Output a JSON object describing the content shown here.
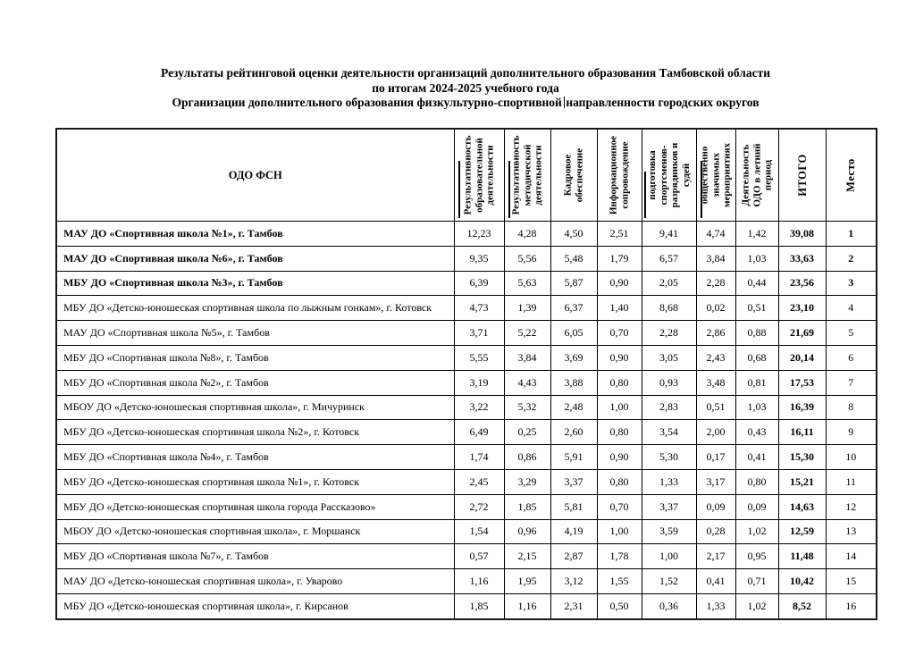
{
  "title": {
    "line1": "Результаты рейтинговой оценки деятельности организаций дополнительного образования Тамбовской области",
    "line2": "по итогам 2024-2025 учебного года",
    "line3_before": "Организации дополнительного образования физкультурно-спортивной",
    "line3_after": "направленности городских округов"
  },
  "table": {
    "first_column_header": "ОДО ФСН",
    "columns": [
      {
        "label": "Результативность образовательной деятельности",
        "artifact": true
      },
      {
        "label": "Результативность методической деятельности",
        "artifact": true
      },
      {
        "label": "Кадровое обеспечение",
        "artifact": false
      },
      {
        "label": "Информационное сопровождение",
        "artifact": false
      },
      {
        "label": "подготовка спортсменов-разрядников и судей",
        "artifact": true,
        "artifact_short": true
      },
      {
        "label": "общественно значимых мероприятиях",
        "artifact": true
      },
      {
        "label": "Деятельность ОДО в летний период",
        "artifact": false
      },
      {
        "label": "ИТОГО",
        "artifact": false,
        "big": true
      },
      {
        "label": "Место",
        "artifact": false,
        "big": true
      }
    ],
    "rows": [
      {
        "name": "МАУ ДО «Спортивная школа №1», г. Тамбов",
        "bold": true,
        "values": [
          "12,23",
          "4,28",
          "4,50",
          "2,51",
          "9,41",
          "4,74",
          "1,42"
        ],
        "total": "39,08",
        "place": "1"
      },
      {
        "name": "МАУ ДО «Спортивная школа №6», г. Тамбов",
        "bold": true,
        "values": [
          "9,35",
          "5,56",
          "5,48",
          "1,79",
          "6,57",
          "3,84",
          "1,03"
        ],
        "total": "33,63",
        "place": "2"
      },
      {
        "name": "МБУ ДО «Спортивная школа №3», г. Тамбов",
        "bold": true,
        "values": [
          "6,39",
          "5,63",
          "5,87",
          "0,90",
          "2,05",
          "2,28",
          "0,44"
        ],
        "total": "23,56",
        "place": "3"
      },
      {
        "name": "МБУ ДО «Детско-юношеская спортивная школа по лыжным гонкам», г. Котовск",
        "bold": false,
        "values": [
          "4,73",
          "1,39",
          "6,37",
          "1,40",
          "8,68",
          "0,02",
          "0,51"
        ],
        "total": "23,10",
        "place": "4"
      },
      {
        "name": "МАУ ДО «Спортивная школа №5», г. Тамбов",
        "bold": false,
        "values": [
          "3,71",
          "5,22",
          "6,05",
          "0,70",
          "2,28",
          "2,86",
          "0,88"
        ],
        "total": "21,69",
        "place": "5"
      },
      {
        "name": "МБУ ДО «Спортивная школа №8», г. Тамбов",
        "bold": false,
        "values": [
          "5,55",
          "3,84",
          "3,69",
          "0,90",
          "3,05",
          "2,43",
          "0,68"
        ],
        "total": "20,14",
        "place": "6"
      },
      {
        "name": "МБУ ДО «Спортивная школа №2», г. Тамбов",
        "bold": false,
        "values": [
          "3,19",
          "4,43",
          "3,88",
          "0,80",
          "0,93",
          "3,48",
          "0,81"
        ],
        "total": "17,53",
        "place": "7"
      },
      {
        "name": "МБОУ ДО «Детско-юношеская спортивная школа», г. Мичуринск",
        "bold": false,
        "values": [
          "3,22",
          "5,32",
          "2,48",
          "1,00",
          "2,83",
          "0,51",
          "1,03"
        ],
        "total": "16,39",
        "place": "8"
      },
      {
        "name": "МБУ ДО «Детско-юношеская спортивная школа №2», г. Котовск",
        "bold": false,
        "values": [
          "6,49",
          "0,25",
          "2,60",
          "0,80",
          "3,54",
          "2,00",
          "0,43"
        ],
        "total": "16,11",
        "place": "9"
      },
      {
        "name": "МБУ ДО «Спортивная школа №4», г. Тамбов",
        "bold": false,
        "values": [
          "1,74",
          "0,86",
          "5,91",
          "0,90",
          "5,30",
          "0,17",
          "0,41"
        ],
        "total": "15,30",
        "place": "10"
      },
      {
        "name": "МБУ ДО «Детско-юношеская спортивная школа №1», г. Котовск",
        "bold": false,
        "values": [
          "2,45",
          "3,29",
          "3,37",
          "0,80",
          "1,33",
          "3,17",
          "0,80"
        ],
        "total": "15,21",
        "place": "11"
      },
      {
        "name": "МБУ ДО «Детско-юношеская спортивная школа города Рассказово»",
        "bold": false,
        "values": [
          "2,72",
          "1,85",
          "5,81",
          "0,70",
          "3,37",
          "0,09",
          "0,09"
        ],
        "total": "14,63",
        "place": "12"
      },
      {
        "name": "МБОУ ДО «Детско-юношеская спортивная школа», г. Моршанск",
        "bold": false,
        "values": [
          "1,54",
          "0,96",
          "4,19",
          "1,00",
          "3,59",
          "0,28",
          "1,02"
        ],
        "total": "12,59",
        "place": "13"
      },
      {
        "name": "МБУ ДО «Спортивная школа №7», г. Тамбов",
        "bold": false,
        "values": [
          "0,57",
          "2,15",
          "2,87",
          "1,78",
          "1,00",
          "2,17",
          "0,95"
        ],
        "total": "11,48",
        "place": "14"
      },
      {
        "name": "МАУ ДО «Детско-юношеская спортивная школа», г. Уварово",
        "bold": false,
        "values": [
          "1,16",
          "1,95",
          "3,12",
          "1,55",
          "1,52",
          "0,41",
          "0,71"
        ],
        "total": "10,42",
        "place": "15"
      },
      {
        "name": "МБУ ДО «Детско-юношеская спортивная школа», г. Кирсанов",
        "bold": false,
        "values": [
          "1,85",
          "1,16",
          "2,31",
          "0,50",
          "0,36",
          "1,33",
          "1,02"
        ],
        "total": "8,52",
        "place": "16"
      }
    ]
  }
}
